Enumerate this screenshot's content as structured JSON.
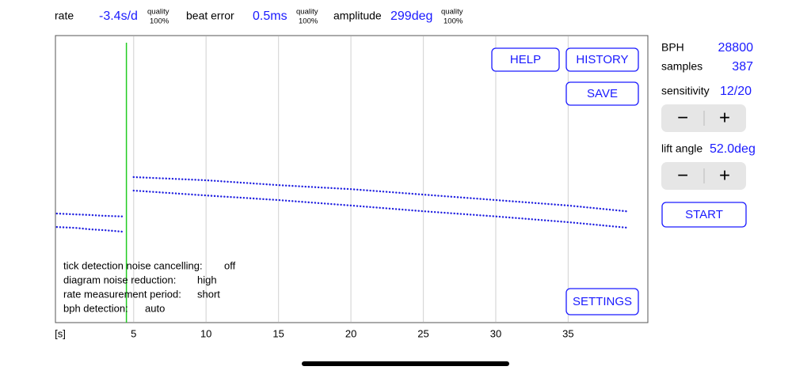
{
  "header": {
    "metrics": [
      {
        "label": "rate",
        "value": "-3.4s/d",
        "quality_label": "quality",
        "quality": "100%"
      },
      {
        "label": "beat error",
        "value": "0.5ms",
        "quality_label": "quality",
        "quality": "100%"
      },
      {
        "label": "amplitude",
        "value": "299deg",
        "quality_label": "quality",
        "quality": "100%"
      }
    ]
  },
  "panel": {
    "bph_label": "BPH",
    "bph": "28800",
    "samples_label": "samples",
    "samples": "387",
    "sensitivity_label": "sensitivity",
    "sensitivity": "12/20",
    "sensitivity_buttons": [
      "−",
      "+"
    ],
    "lift_angle_label": "lift angle",
    "lift_angle": "52.0deg",
    "lift_angle_buttons": [
      "−",
      "+"
    ],
    "start": "START"
  },
  "buttons": {
    "help": "HELP",
    "history": "HISTORY",
    "save": "SAVE",
    "settings": "SETTINGS"
  },
  "settings_info": [
    [
      "tick detection noise cancelling:",
      "off"
    ],
    [
      "diagram noise reduction:",
      "high"
    ],
    [
      "rate measurement period:",
      "short"
    ],
    [
      "bph detection:",
      "auto"
    ]
  ],
  "chart_data": {
    "type": "line",
    "x_label": "[s]",
    "x": [
      -0.3,
      1,
      2,
      3,
      4.2,
      4.6,
      5,
      10,
      15,
      20,
      25,
      30,
      35,
      39
    ],
    "series": [
      {
        "color": "#2020e0",
        "values": [
          38.0,
          37.7,
          37.5,
          37.2,
          37.0,
          null,
          50.7,
          49.6,
          47.9,
          46.5,
          44.6,
          42.7,
          40.8,
          38.8
        ]
      },
      {
        "color": "#2020e0",
        "values": [
          33.3,
          33.0,
          32.5,
          32.2,
          31.7,
          null,
          46.0,
          44.3,
          42.7,
          40.8,
          38.8,
          37.0,
          35.0,
          33.1
        ]
      }
    ],
    "xlim": [
      -0.4,
      40.5
    ],
    "ylim": [
      0,
      100
    ],
    "xticks": [
      5,
      10,
      15,
      20,
      25,
      30,
      35
    ],
    "grid": true,
    "marker_x": 4.5,
    "marker_color": "#22cc22"
  }
}
